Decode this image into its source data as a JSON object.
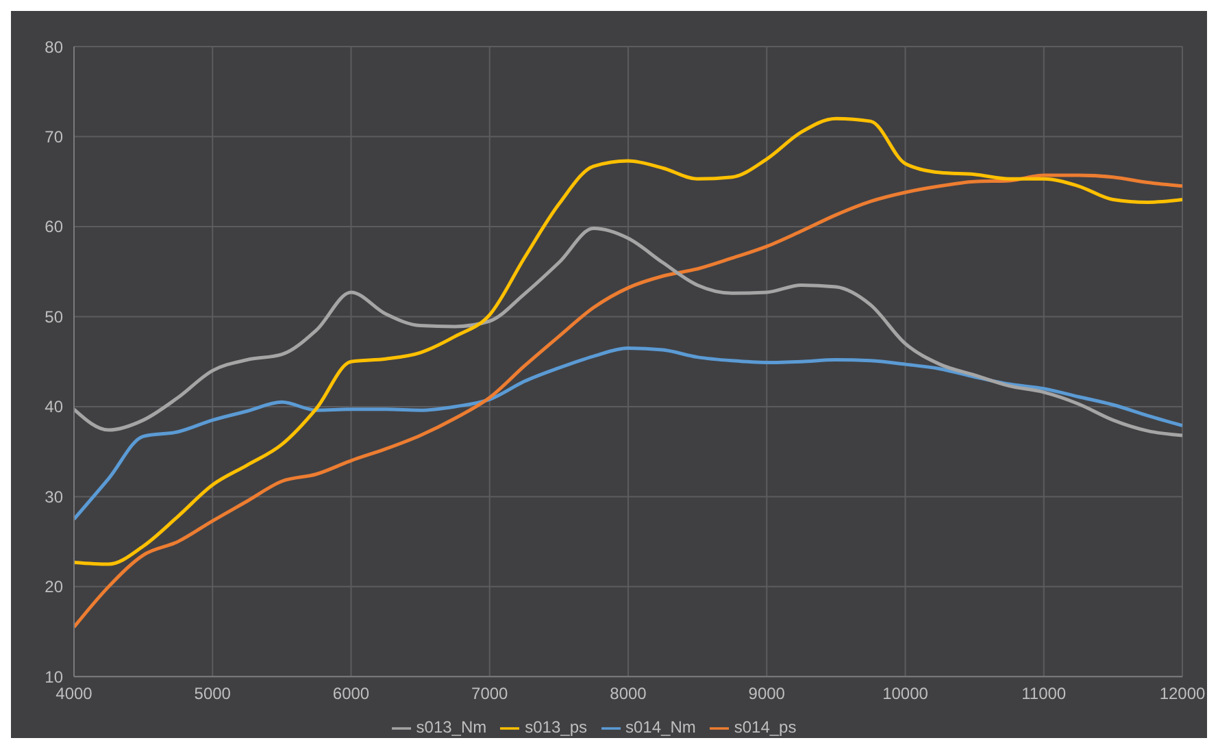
{
  "chart_data": {
    "type": "line",
    "x": [
      4000,
      4250,
      4500,
      4750,
      5000,
      5250,
      5500,
      5750,
      6000,
      6250,
      6500,
      6750,
      7000,
      7250,
      7500,
      7750,
      8000,
      8250,
      8500,
      8750,
      9000,
      9250,
      9500,
      9750,
      10000,
      10250,
      10500,
      10750,
      11000,
      11250,
      11500,
      11750,
      12000
    ],
    "series": [
      {
        "name": "s014_Nm",
        "color": "#5b9bd5",
        "values": [
          27.5,
          32,
          36.7,
          37.2,
          38.5,
          39.5,
          40.5,
          39.6,
          39.7,
          39.7,
          39.6,
          40,
          40.8,
          42.8,
          44.3,
          45.6,
          46.5,
          46.3,
          45.5,
          45.1,
          44.9,
          45,
          45.2,
          45.1,
          44.7,
          44.2,
          43.3,
          42.5,
          42,
          41.1,
          40.2,
          39,
          37.9
        ]
      },
      {
        "name": "s014_ps",
        "color": "#ed7d31",
        "values": [
          15.5,
          20,
          23.5,
          25,
          27.3,
          29.5,
          31.7,
          32.5,
          34,
          35.3,
          36.8,
          38.7,
          41,
          44.5,
          47.8,
          51,
          53.2,
          54.5,
          55.3,
          56.5,
          57.8,
          59.5,
          61.3,
          62.8,
          63.8,
          64.5,
          65,
          65.1,
          65.7,
          65.7,
          65.5,
          64.9,
          64.5
        ]
      },
      {
        "name": "s013_Nm",
        "color": "#a5a5a5",
        "values": [
          39.7,
          37.4,
          38.5,
          41,
          44,
          45.2,
          45.8,
          48.5,
          52.7,
          50.3,
          49,
          48.9,
          49.5,
          52.5,
          56,
          59.8,
          58.7,
          56,
          53.5,
          52.6,
          52.7,
          53.5,
          53.3,
          51.3,
          47,
          44.7,
          43.5,
          42.3,
          41.6,
          40.3,
          38.5,
          37.3,
          36.8
        ]
      },
      {
        "name": "s013_ps",
        "color": "#ffc000",
        "values": [
          22.7,
          22.5,
          24.5,
          27.8,
          31.3,
          33.5,
          35.8,
          39.8,
          45,
          45.3,
          46,
          47.8,
          50.2,
          56.5,
          62.5,
          66.7,
          67.3,
          66.5,
          65.3,
          65.5,
          67.5,
          70.5,
          72,
          71.7,
          67,
          66,
          65.8,
          65.3,
          65.3,
          64.5,
          63,
          62.7,
          63
        ]
      }
    ],
    "xlim": [
      4000,
      12000
    ],
    "xticks": [
      4000,
      5000,
      6000,
      7000,
      8000,
      9000,
      10000,
      11000,
      12000
    ],
    "ylim": [
      10,
      80
    ],
    "yticks": [
      10,
      20,
      30,
      40,
      50,
      60,
      70,
      80
    ],
    "grid": true,
    "legend": "bottom",
    "marker": "none",
    "line_style": "solid"
  }
}
